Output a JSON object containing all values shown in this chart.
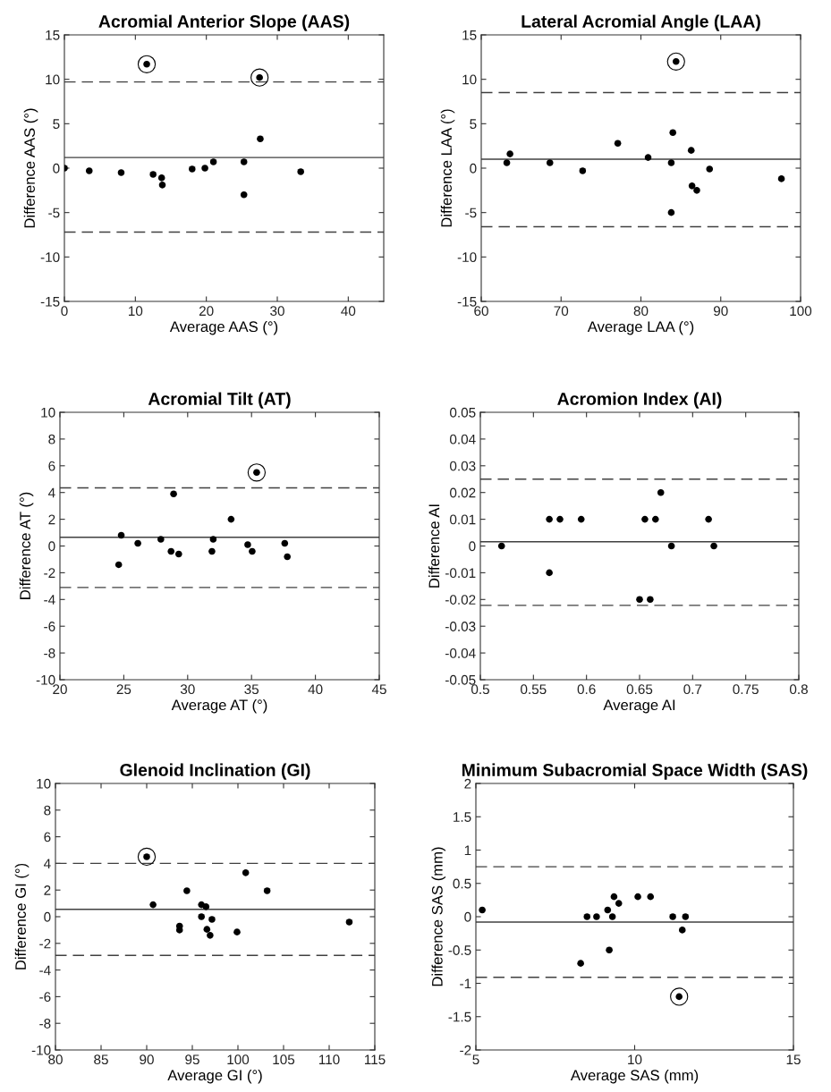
{
  "chart_data": [
    {
      "type": "scatter",
      "title": "Acromial Anterior Slope (AAS)",
      "xlabel": "Average AAS (°)",
      "ylabel": "Difference AAS (°)",
      "xlim": [
        0,
        45
      ],
      "ylim": [
        -15,
        15
      ],
      "xticks": [
        0,
        10,
        20,
        30,
        40
      ],
      "yticks": [
        -15,
        -10,
        -5,
        0,
        5,
        10,
        15
      ],
      "marker": "circle",
      "grid": false,
      "series": [
        {
          "color": "#000000",
          "x": [
            0,
            3.5,
            8,
            11.6,
            12.5,
            13.7,
            13.8,
            18,
            19.8,
            21,
            25.3,
            25.3,
            27.5,
            27.6,
            33.3
          ],
          "values": [
            0,
            -0.3,
            -0.5,
            11.7,
            -0.7,
            -1.1,
            -1.9,
            -0.1,
            0,
            0.7,
            0.7,
            -3,
            10.2,
            3.3,
            -0.4
          ]
        },
        {
          "type": "bubble",
          "color": "#000000",
          "x": [
            11.6,
            27.5
          ],
          "values": [
            11.7,
            10.2
          ],
          "sizes": [
            1,
            1
          ]
        }
      ],
      "ref_lines": [
        {
          "axis": "y",
          "value": 9.7,
          "line_style": "dashed",
          "color": "#404040"
        },
        {
          "axis": "y",
          "value": 1.2,
          "line_style": "solid",
          "color": "#404040"
        },
        {
          "axis": "y",
          "value": -7.2,
          "line_style": "dashed",
          "color": "#404040"
        }
      ]
    },
    {
      "type": "scatter",
      "title": "Lateral Acromial Angle (LAA)",
      "xlabel": "Average LAA (°)",
      "ylabel": "Difference LAA (°)",
      "xlim": [
        60,
        100
      ],
      "ylim": [
        -15,
        15
      ],
      "xticks": [
        60,
        70,
        80,
        90,
        100
      ],
      "yticks": [
        -15,
        -10,
        -5,
        0,
        5,
        10,
        15
      ],
      "marker": "circle",
      "grid": false,
      "series": [
        {
          "color": "#000000",
          "x": [
            63.2,
            63.6,
            68.6,
            72.7,
            77.1,
            80.9,
            83.8,
            84.0,
            83.8,
            84.4,
            86.3,
            86.4,
            87.0,
            88.6,
            97.6
          ],
          "values": [
            0.6,
            1.6,
            0.6,
            -0.3,
            2.8,
            1.2,
            0.6,
            4.0,
            -5.0,
            12.0,
            2.0,
            -2.0,
            -2.5,
            -0.1,
            -1.2
          ]
        },
        {
          "type": "bubble",
          "color": "#000000",
          "x": [
            84.4
          ],
          "values": [
            12.0
          ],
          "sizes": [
            1
          ]
        }
      ],
      "ref_lines": [
        {
          "axis": "y",
          "value": 8.5,
          "line_style": "dashed",
          "color": "#404040"
        },
        {
          "axis": "y",
          "value": 1.0,
          "line_style": "solid",
          "color": "#404040"
        },
        {
          "axis": "y",
          "value": -6.6,
          "line_style": "dashed",
          "color": "#404040"
        }
      ]
    },
    {
      "type": "scatter",
      "title": "Acromial Tilt (AT)",
      "xlabel": "Average AT (°)",
      "ylabel": "Difference AT (°)",
      "xlim": [
        20,
        45
      ],
      "ylim": [
        -10,
        10
      ],
      "xticks": [
        20,
        25,
        30,
        35,
        40,
        45
      ],
      "yticks": [
        -10,
        -8,
        -6,
        -4,
        -2,
        0,
        2,
        4,
        6,
        8,
        10
      ],
      "marker": "circle",
      "grid": false,
      "series": [
        {
          "color": "#000000",
          "x": [
            24.6,
            24.8,
            26.1,
            27.9,
            28.7,
            28.9,
            29.3,
            31.9,
            32.0,
            33.4,
            34.7,
            35.05,
            35.4,
            37.6,
            37.8
          ],
          "values": [
            -1.4,
            0.8,
            0.2,
            0.5,
            -0.4,
            3.9,
            -0.6,
            -0.4,
            0.5,
            2.0,
            0.1,
            -0.4,
            5.5,
            0.2,
            -0.8
          ]
        },
        {
          "type": "bubble",
          "color": "#000000",
          "x": [
            35.4
          ],
          "values": [
            5.5
          ],
          "sizes": [
            1
          ]
        }
      ],
      "ref_lines": [
        {
          "axis": "y",
          "value": 4.35,
          "line_style": "dashed",
          "color": "#404040"
        },
        {
          "axis": "y",
          "value": 0.65,
          "line_style": "solid",
          "color": "#404040"
        },
        {
          "axis": "y",
          "value": -3.1,
          "line_style": "dashed",
          "color": "#404040"
        }
      ]
    },
    {
      "type": "scatter",
      "title": "Acromion Index (AI)",
      "xlabel": "Average AI",
      "ylabel": "Difference AI",
      "xlim": [
        0.5,
        0.8
      ],
      "ylim": [
        -0.05,
        0.05
      ],
      "xticks": [
        0.5,
        0.55,
        0.6,
        0.65,
        0.7,
        0.75,
        0.8
      ],
      "yticks": [
        -0.05,
        -0.04,
        -0.03,
        -0.02,
        -0.01,
        0,
        0.01,
        0.02,
        0.03,
        0.04,
        0.05
      ],
      "marker": "circle",
      "grid": false,
      "series": [
        {
          "color": "#000000",
          "x": [
            0.52,
            0.565,
            0.565,
            0.575,
            0.595,
            0.65,
            0.655,
            0.66,
            0.665,
            0.67,
            0.68,
            0.715,
            0.72
          ],
          "values": [
            0,
            0.01,
            -0.01,
            0.01,
            0.01,
            -0.02,
            0.01,
            -0.02,
            0.01,
            0.02,
            0,
            0.01,
            0
          ]
        }
      ],
      "ref_lines": [
        {
          "axis": "y",
          "value": 0.025,
          "line_style": "dashed",
          "color": "#404040"
        },
        {
          "axis": "y",
          "value": 0.0016,
          "line_style": "solid",
          "color": "#404040"
        },
        {
          "axis": "y",
          "value": -0.0222,
          "line_style": "dashed",
          "color": "#404040"
        }
      ]
    },
    {
      "type": "scatter",
      "title": "Glenoid Inclination (GI)",
      "xlabel": "Average GI (°)",
      "ylabel": "Difference GI (°)",
      "xlim": [
        80,
        115
      ],
      "ylim": [
        -10,
        10
      ],
      "xticks": [
        80,
        85,
        90,
        95,
        100,
        105,
        110,
        115
      ],
      "yticks": [
        -10,
        -8,
        -6,
        -4,
        -2,
        0,
        2,
        4,
        6,
        8,
        10
      ],
      "marker": "circle",
      "grid": false,
      "series": [
        {
          "color": "#000000",
          "x": [
            90.0,
            90.7,
            93.6,
            93.6,
            94.4,
            96.0,
            96.0,
            96.5,
            96.6,
            96.95,
            97.15,
            99.9,
            100.85,
            103.2,
            112.2
          ],
          "values": [
            4.5,
            0.9,
            -0.7,
            -1.0,
            1.95,
            0.9,
            0,
            0.75,
            -0.95,
            -1.4,
            -0.2,
            -1.15,
            3.3,
            1.95,
            -0.4
          ]
        },
        {
          "type": "bubble",
          "color": "#000000",
          "x": [
            90.0
          ],
          "values": [
            4.5
          ],
          "sizes": [
            1
          ]
        }
      ],
      "ref_lines": [
        {
          "axis": "y",
          "value": 4.0,
          "line_style": "dashed",
          "color": "#404040"
        },
        {
          "axis": "y",
          "value": 0.55,
          "line_style": "solid",
          "color": "#404040"
        },
        {
          "axis": "y",
          "value": -2.9,
          "line_style": "dashed",
          "color": "#404040"
        }
      ]
    },
    {
      "type": "scatter",
      "title": "Minimum Subacromial Space Width (SAS)",
      "xlabel": "Average SAS (mm)",
      "ylabel": "Difference SAS (mm)",
      "xlim": [
        5,
        15
      ],
      "ylim": [
        -2,
        2
      ],
      "xticks": [
        5,
        10,
        15
      ],
      "yticks": [
        -2,
        -1.5,
        -1,
        -0.5,
        0,
        0.5,
        1,
        1.5,
        2
      ],
      "marker": "circle",
      "grid": false,
      "series": [
        {
          "color": "#000000",
          "x": [
            5.2,
            8.3,
            8.5,
            8.8,
            9.15,
            9.2,
            9.3,
            9.35,
            9.5,
            10.1,
            10.5,
            11.2,
            11.4,
            11.5,
            11.6
          ],
          "values": [
            0.1,
            -0.7,
            0,
            0,
            0.1,
            -0.5,
            0,
            0.3,
            0.2,
            0.3,
            0.3,
            0,
            -1.2,
            -0.2,
            0
          ]
        },
        {
          "type": "bubble",
          "color": "#000000",
          "x": [
            11.4
          ],
          "values": [
            -1.2
          ],
          "sizes": [
            1
          ]
        }
      ],
      "ref_lines": [
        {
          "axis": "y",
          "value": 0.75,
          "line_style": "dashed",
          "color": "#404040"
        },
        {
          "axis": "y",
          "value": -0.08,
          "line_style": "solid",
          "color": "#404040"
        },
        {
          "axis": "y",
          "value": -0.91,
          "line_style": "dashed",
          "color": "#404040"
        }
      ]
    }
  ]
}
